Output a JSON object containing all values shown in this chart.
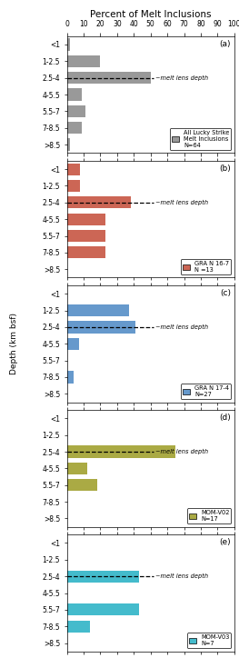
{
  "title": "Percent of Melt Inclusions",
  "xlim": [
    0,
    100
  ],
  "xticks": [
    0,
    10,
    20,
    30,
    40,
    50,
    60,
    70,
    80,
    90,
    100
  ],
  "depth_labels": [
    "<1",
    "1-2.5",
    "2.5-4",
    "4-5.5",
    "5.5-7",
    "7-8.5",
    ">8.5"
  ],
  "melt_lens_row": 2,
  "panels": [
    {
      "label": "(a)",
      "values": [
        2,
        20,
        50,
        9,
        11,
        9,
        2
      ],
      "color": "#999999",
      "legend_lines": [
        "All Lucky Strike",
        "Melt Inclusions",
        "N=64"
      ],
      "melt_annotation": "~melt lens depth"
    },
    {
      "label": "(b)",
      "values": [
        8,
        8,
        38,
        23,
        23,
        23,
        0
      ],
      "color": "#cc6655",
      "legend_lines": [
        "GRA N 16-7",
        "N =13"
      ],
      "melt_annotation": "~melt lens depth"
    },
    {
      "label": "(c)",
      "values": [
        0,
        37,
        41,
        7,
        0,
        4,
        0
      ],
      "color": "#6699cc",
      "legend_lines": [
        "GRA N 17-4",
        "N=27"
      ],
      "melt_annotation": "~melt lens depth"
    },
    {
      "label": "(d)",
      "values": [
        0,
        0,
        65,
        12,
        18,
        0,
        0
      ],
      "color": "#aaaa44",
      "legend_lines": [
        "MOM-V02",
        "N=17"
      ],
      "melt_annotation": "~melt lens depth"
    },
    {
      "label": "(e)",
      "values": [
        0,
        0,
        43,
        0,
        43,
        14,
        0
      ],
      "color": "#44bbcc",
      "legend_lines": [
        "MOM-V03",
        "N=7"
      ],
      "melt_annotation": "~melt lens depth"
    }
  ]
}
